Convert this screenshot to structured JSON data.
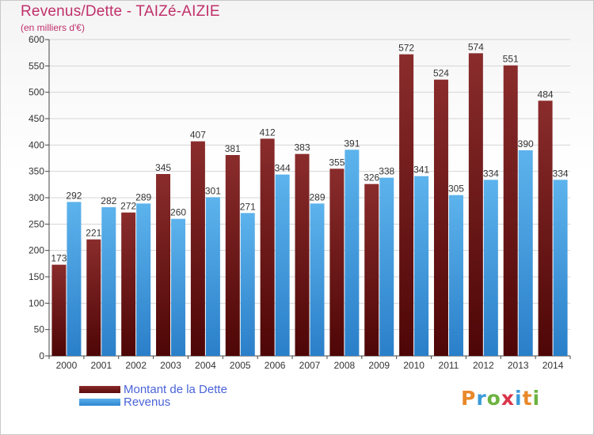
{
  "title": "Revenus/Dette - TAIZé-AIZIE",
  "subtitle": "(en milliers d'€)",
  "logo": "Proxiti",
  "colors": {
    "dette": "#6b1414",
    "revenus": "#45a0e4",
    "title": "#c0306a",
    "legend_text": "#4a63d8"
  },
  "chart_data": {
    "type": "bar",
    "title": "Revenus/Dette - TAIZé-AIZIE",
    "subtitle": "(en milliers d'€)",
    "categories": [
      "2000",
      "2001",
      "2002",
      "2003",
      "2004",
      "2005",
      "2006",
      "2007",
      "2008",
      "2009",
      "2010",
      "2011",
      "2012",
      "2013",
      "2014"
    ],
    "series": [
      {
        "name": "Montant de la Dette",
        "values": [
          173,
          221,
          272,
          345,
          407,
          381,
          412,
          383,
          355,
          326,
          572,
          524,
          574,
          551,
          484
        ]
      },
      {
        "name": "Revenus",
        "values": [
          292,
          282,
          289,
          260,
          301,
          271,
          344,
          289,
          391,
          338,
          341,
          305,
          334,
          390,
          334
        ]
      }
    ],
    "ylim": [
      0,
      600
    ],
    "yticks": [
      0,
      50,
      100,
      150,
      200,
      250,
      300,
      350,
      400,
      450,
      500,
      550,
      600
    ],
    "grid": true,
    "legend_position": "bottom-left"
  }
}
